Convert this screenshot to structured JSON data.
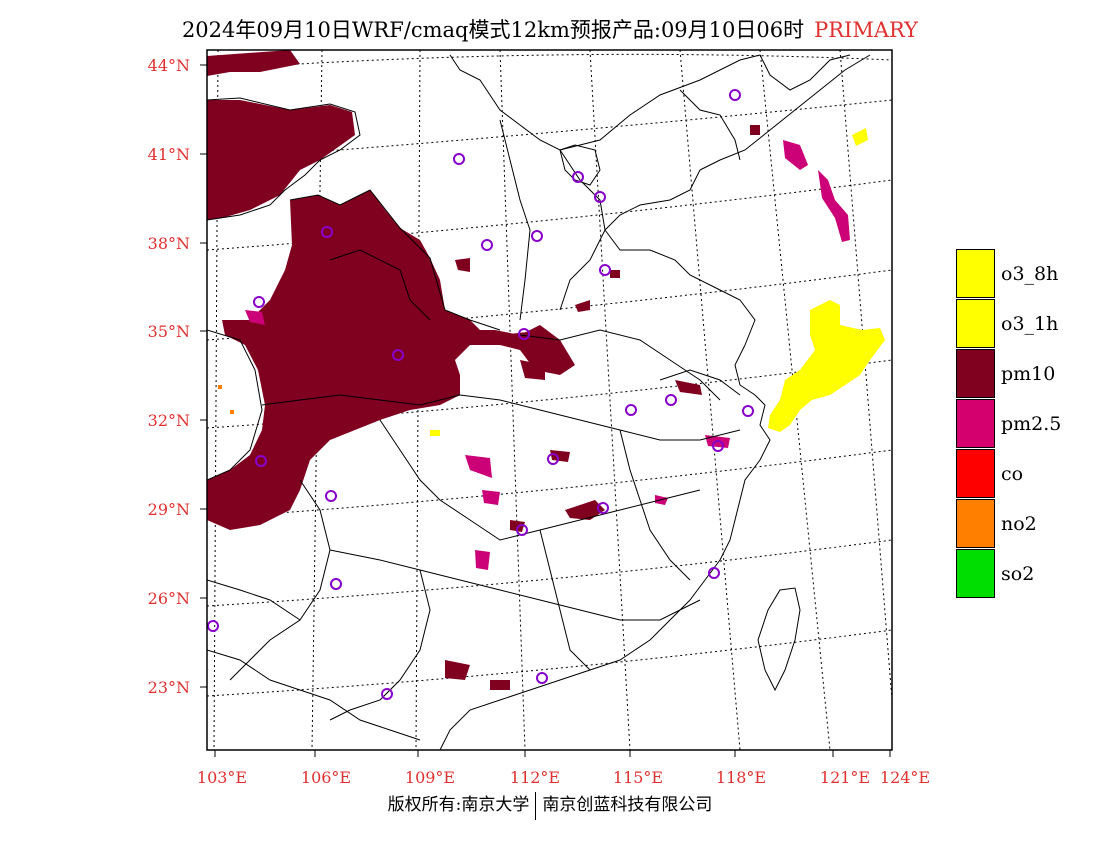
{
  "title": {
    "main": "2024年09月10日WRF/cmaq模式12km预报产品:09月10日06时",
    "tag": "PRIMARY"
  },
  "axes": {
    "lat_ticks": [
      "44°N",
      "41°N",
      "38°N",
      "35°N",
      "32°N",
      "29°N",
      "26°N",
      "23°N"
    ],
    "lon_ticks": [
      "103°E",
      "106°E",
      "109°E",
      "112°E",
      "115°E",
      "118°E",
      "121°E",
      "124°E"
    ]
  },
  "legend": {
    "items": [
      {
        "label": "o3_8h",
        "color": "#ffff00"
      },
      {
        "label": "o3_1h",
        "color": "#ffff00"
      },
      {
        "label": "pm10",
        "color": "#800020"
      },
      {
        "label": "pm2.5",
        "color": "#d4006e"
      },
      {
        "label": "co",
        "color": "#ff0000"
      },
      {
        "label": "no2",
        "color": "#ff8000"
      },
      {
        "label": "so2",
        "color": "#00dd00"
      }
    ]
  },
  "colors": {
    "pm10": "#800020",
    "pm25": "#cc0077",
    "o3": "#ffff00",
    "no2": "#ff8000",
    "station": "#8800cc",
    "label_red": "#e03030"
  },
  "footer": {
    "left": "版权所有:南京大学",
    "right": "南京创蓝科技有限公司"
  }
}
